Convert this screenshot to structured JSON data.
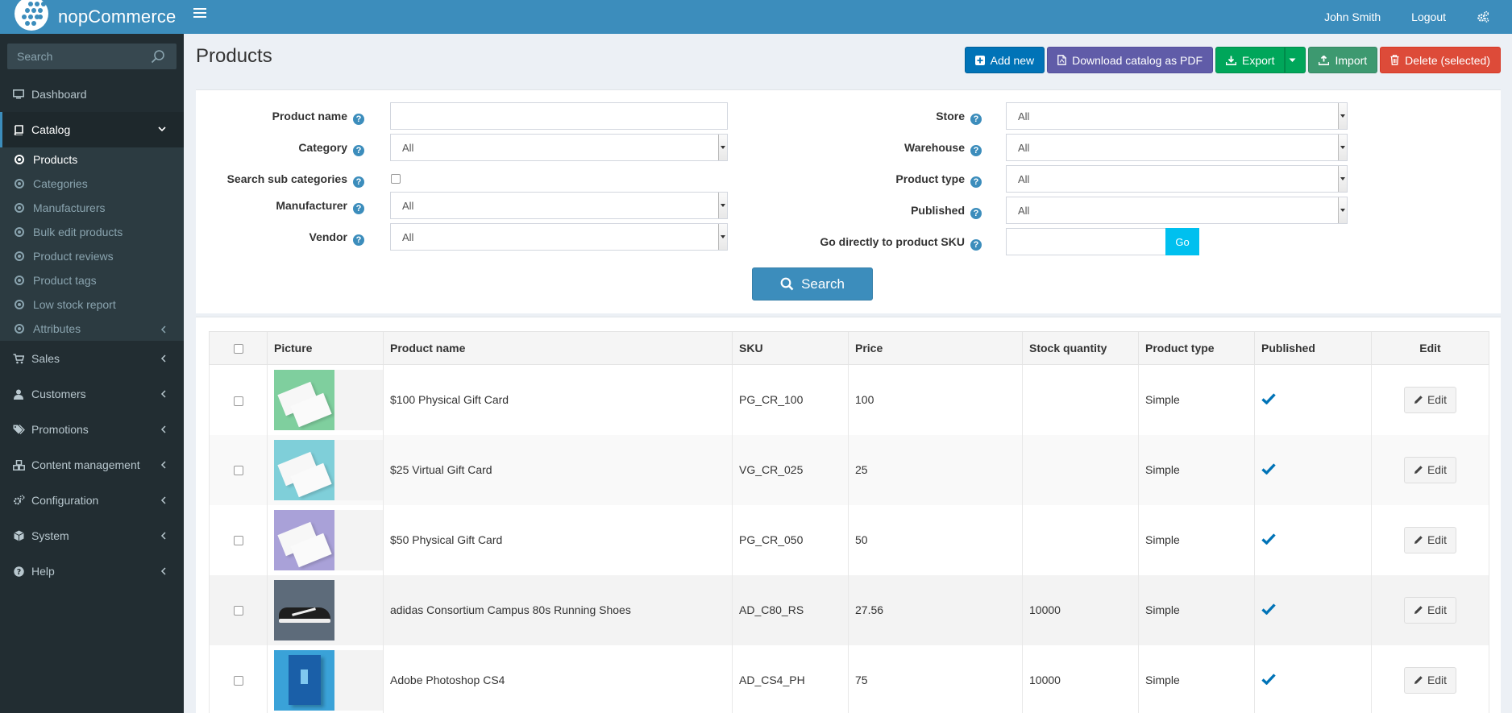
{
  "header": {
    "brand": "nopCommerce",
    "user_name": "John Smith",
    "logout_label": "Logout",
    "accent_color": "#3c8dbc"
  },
  "sidebar": {
    "search_placeholder": "Search",
    "items": [
      {
        "label": "Dashboard",
        "icon": "monitor-icon"
      },
      {
        "label": "Catalog",
        "icon": "book-icon"
      },
      {
        "label": "Sales",
        "icon": "cart-icon"
      },
      {
        "label": "Customers",
        "icon": "user-icon"
      },
      {
        "label": "Promotions",
        "icon": "tags-icon"
      },
      {
        "label": "Content management",
        "icon": "cubes-icon"
      },
      {
        "label": "Configuration",
        "icon": "gears-icon"
      },
      {
        "label": "System",
        "icon": "cube-icon"
      },
      {
        "label": "Help",
        "icon": "question-circle-icon"
      }
    ],
    "catalog_submenu": [
      {
        "label": "Products"
      },
      {
        "label": "Categories"
      },
      {
        "label": "Manufacturers"
      },
      {
        "label": "Bulk edit products"
      },
      {
        "label": "Product reviews"
      },
      {
        "label": "Product tags"
      },
      {
        "label": "Low stock report"
      },
      {
        "label": "Attributes"
      }
    ]
  },
  "page": {
    "title": "Products",
    "actions": {
      "add_new": "Add new",
      "download_pdf": "Download catalog as PDF",
      "export": "Export",
      "import": "Import",
      "delete_selected": "Delete (selected)"
    }
  },
  "filters": {
    "product_name_label": "Product name",
    "product_name_value": "",
    "category_label": "Category",
    "category_value": "All",
    "search_sub_label": "Search sub categories",
    "manufacturer_label": "Manufacturer",
    "manufacturer_value": "All",
    "vendor_label": "Vendor",
    "vendor_value": "All",
    "store_label": "Store",
    "store_value": "All",
    "warehouse_label": "Warehouse",
    "warehouse_value": "All",
    "product_type_label": "Product type",
    "product_type_value": "All",
    "published_label": "Published",
    "published_value": "All",
    "sku_label": "Go directly to product SKU",
    "sku_value": "",
    "go_label": "Go",
    "search_label": "Search",
    "help_glyph": "?"
  },
  "table": {
    "columns": [
      "Picture",
      "Product name",
      "SKU",
      "Price",
      "Stock quantity",
      "Product type",
      "Published",
      "Edit"
    ],
    "edit_label": "Edit",
    "rows": [
      {
        "name": "$100 Physical Gift Card",
        "sku": "PG_CR_100",
        "price": "100",
        "stock": "",
        "type": "Simple",
        "thumb_color": "#7fcf9e"
      },
      {
        "name": "$25 Virtual Gift Card",
        "sku": "VG_CR_025",
        "price": "25",
        "stock": "",
        "type": "Simple",
        "thumb_color": "#7fcfd9"
      },
      {
        "name": "$50 Physical Gift Card",
        "sku": "PG_CR_050",
        "price": "50",
        "stock": "",
        "type": "Simple",
        "thumb_color": "#a9a1d8"
      },
      {
        "name": "adidas Consortium Campus 80s Running Shoes",
        "sku": "AD_C80_RS",
        "price": "27.56",
        "stock": "10000",
        "type": "Simple",
        "thumb_color": "#5d6b7a"
      },
      {
        "name": "Adobe Photoshop CS4",
        "sku": "AD_CS4_PH",
        "price": "75",
        "stock": "10000",
        "type": "Simple",
        "thumb_color": "#3aa2d8"
      }
    ]
  }
}
